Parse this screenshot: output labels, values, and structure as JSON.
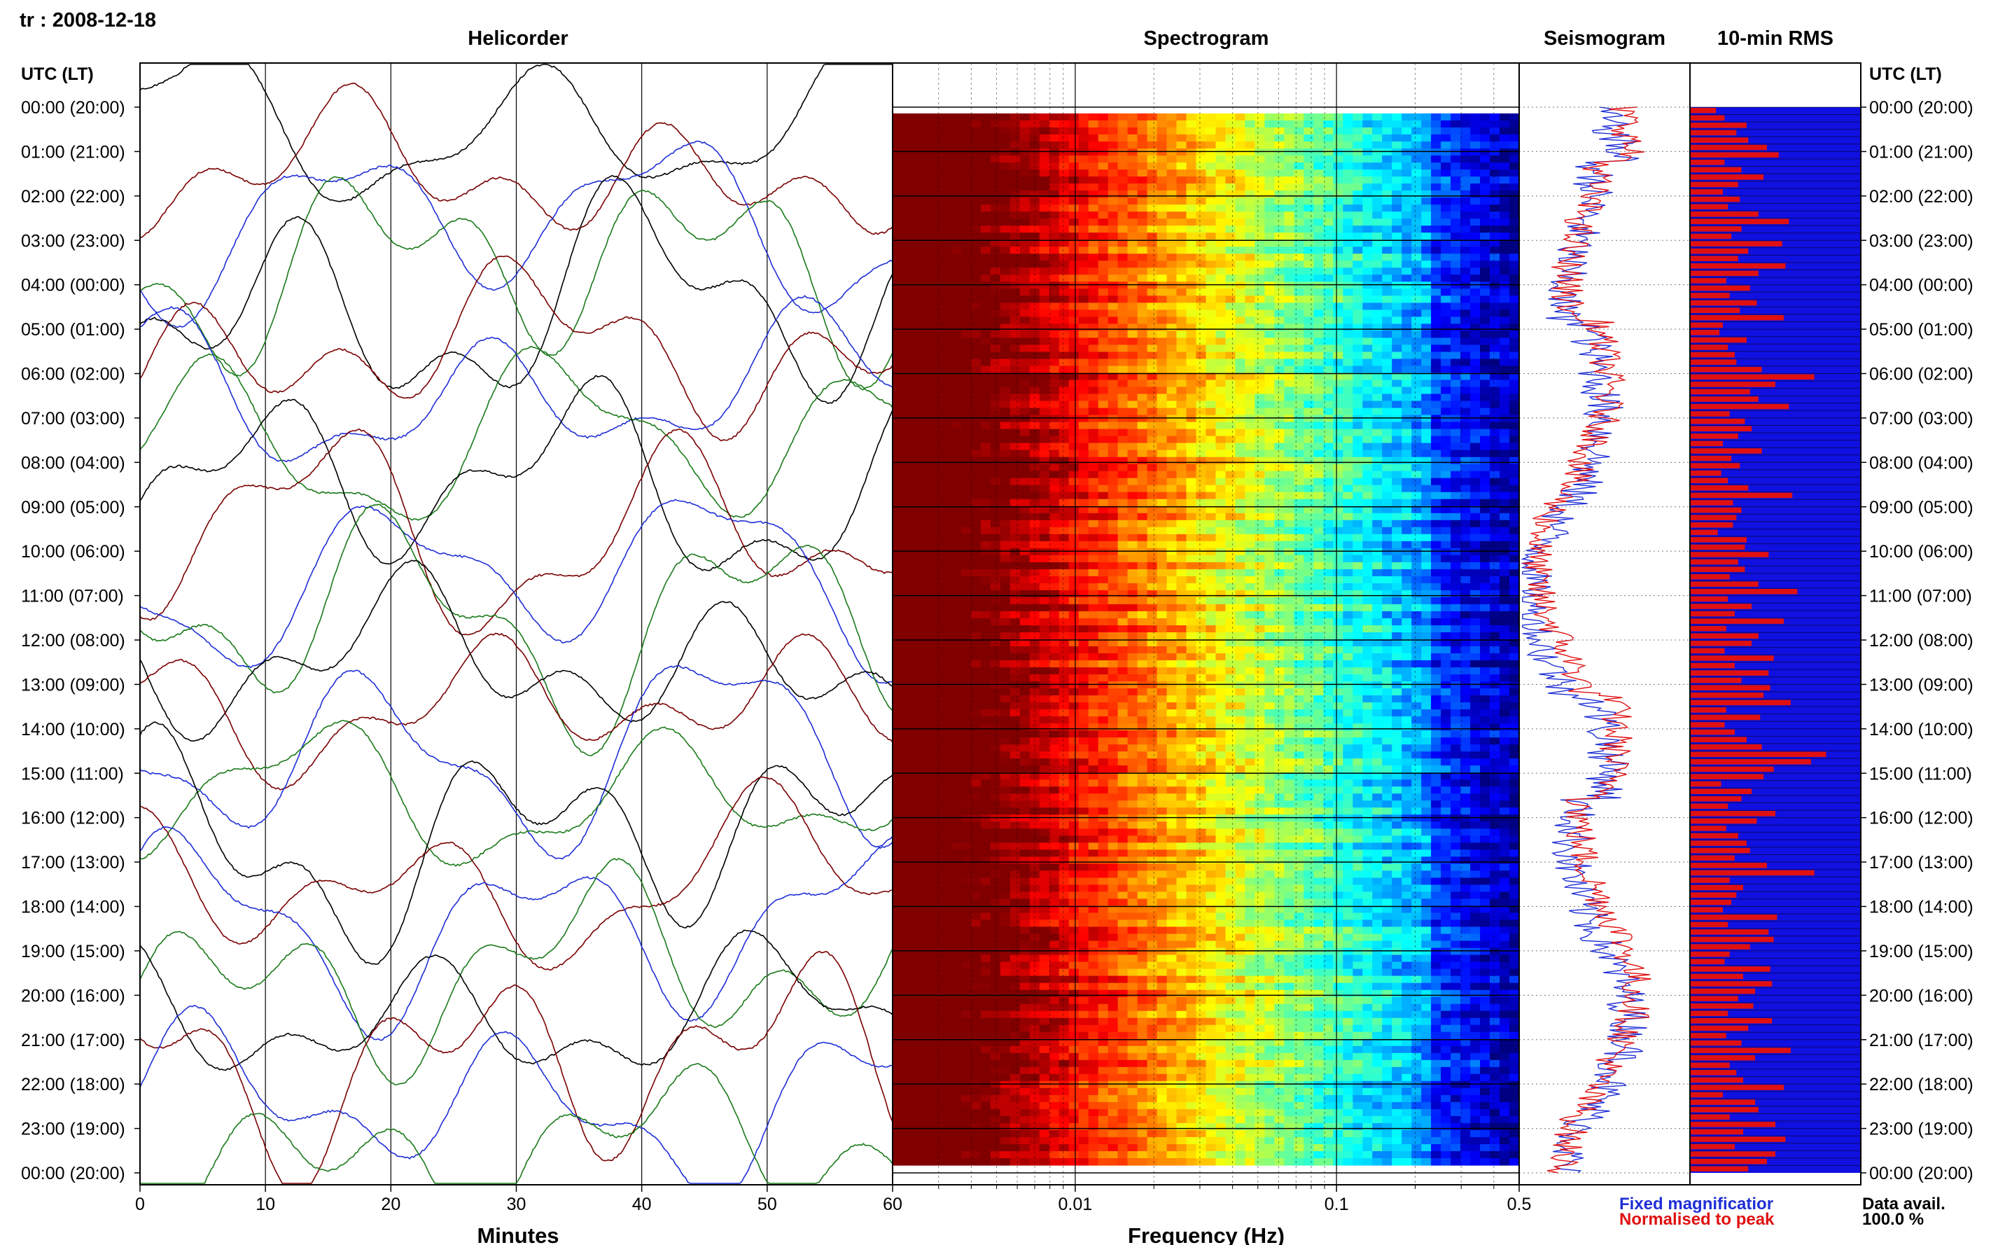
{
  "header": {
    "station": "tr : 2008-12-18"
  },
  "left_axis_title": "UTC (LT)",
  "right_axis_title": "UTC (LT)",
  "hour_labels": [
    "00:00 (20:00)",
    "01:00 (21:00)",
    "02:00 (22:00)",
    "03:00 (23:00)",
    "04:00 (00:00)",
    "05:00 (01:00)",
    "06:00 (02:00)",
    "07:00 (03:00)",
    "08:00 (04:00)",
    "09:00 (05:00)",
    "10:00 (06:00)",
    "11:00 (07:00)",
    "12:00 (08:00)",
    "13:00 (09:00)",
    "14:00 (10:00)",
    "15:00 (11:00)",
    "16:00 (12:00)",
    "17:00 (13:00)",
    "18:00 (14:00)",
    "19:00 (15:00)",
    "20:00 (16:00)",
    "21:00 (17:00)",
    "22:00 (18:00)",
    "23:00 (19:00)",
    "00:00 (20:00)"
  ],
  "legend": {
    "fixed": "Fixed magnificatior",
    "normalised": "Normalised to peak"
  },
  "data_avail": {
    "label": "Data avail.",
    "value": "100.0 %"
  },
  "colors": {
    "blue": "#1f2fd6",
    "red": "#e01010",
    "dark_red": "#7a0000",
    "green": "#1a7a1a",
    "black": "#000000"
  },
  "chart_data": [
    {
      "type": "line",
      "title": "Helicorder",
      "xlabel": "Minutes",
      "x_ticks": [
        "0",
        "10",
        "20",
        "30",
        "40",
        "50",
        "60"
      ],
      "xlim": [
        0,
        60
      ],
      "rows": 24,
      "trace_colors": [
        "black",
        "dark_red",
        "blue",
        "green"
      ],
      "grid": "vertical lines every 10 minutes"
    },
    {
      "type": "heatmap",
      "title": "Spectrogram",
      "xlabel": "Frequency (Hz)",
      "x_scale": "log",
      "x_ticks": [
        "0.01",
        "0.1",
        "0.5"
      ],
      "xlim": [
        0.002,
        0.5
      ],
      "colormap": "jet (dark red = high power at low frequency, blue = low power at high frequency)"
    },
    {
      "type": "line",
      "title": "Seismogram",
      "x_ticks": [
        "0.5"
      ],
      "series": [
        {
          "name": "Fixed magnificatior",
          "color": "blue"
        },
        {
          "name": "Normalised to peak",
          "color": "red"
        }
      ]
    },
    {
      "type": "bar",
      "title": "10-min RMS",
      "orientation": "horizontal",
      "bins_per_hour": 6,
      "bar_color": "red",
      "background_color": "blue",
      "values": [
        0.15,
        0.2,
        0.33,
        0.27,
        0.34,
        0.45,
        0.52,
        0.2,
        0.3,
        0.43,
        0.28,
        0.19,
        0.29,
        0.22,
        0.4,
        0.58,
        0.3,
        0.24,
        0.54,
        0.34,
        0.28,
        0.56,
        0.4,
        0.21,
        0.35,
        0.23,
        0.39,
        0.29,
        0.55,
        0.19,
        0.17,
        0.33,
        0.22,
        0.26,
        0.27,
        0.42,
        0.73,
        0.5,
        0.35,
        0.4,
        0.58,
        0.23,
        0.32,
        0.36,
        0.28,
        0.19,
        0.42,
        0.24,
        0.29,
        0.18,
        0.22,
        0.34,
        0.6,
        0.25,
        0.3,
        0.27,
        0.25,
        0.16,
        0.33,
        0.32,
        0.46,
        0.28,
        0.32,
        0.23,
        0.4,
        0.63,
        0.22,
        0.36,
        0.26,
        0.55,
        0.21,
        0.4,
        0.36,
        0.2,
        0.49,
        0.26,
        0.46,
        0.3,
        0.47,
        0.43,
        0.59,
        0.21,
        0.41,
        0.2,
        0.26,
        0.33,
        0.42,
        0.8,
        0.71,
        0.49,
        0.43,
        0.18,
        0.36,
        0.3,
        0.22,
        0.5,
        0.39,
        0.21,
        0.28,
        0.33,
        0.35,
        0.26,
        0.45,
        0.73,
        0.23,
        0.31,
        0.27,
        0.24,
        0.19,
        0.51,
        0.22,
        0.46,
        0.49,
        0.35,
        0.23,
        0.2,
        0.47,
        0.31,
        0.48,
        0.38,
        0.28,
        0.37,
        0.22,
        0.48,
        0.34,
        0.21,
        0.3,
        0.59,
        0.38,
        0.23,
        0.27,
        0.31,
        0.55,
        0.19,
        0.38,
        0.4,
        0.23,
        0.5,
        0.31,
        0.56,
        0.26,
        0.5,
        0.45,
        0.34
      ]
    }
  ]
}
